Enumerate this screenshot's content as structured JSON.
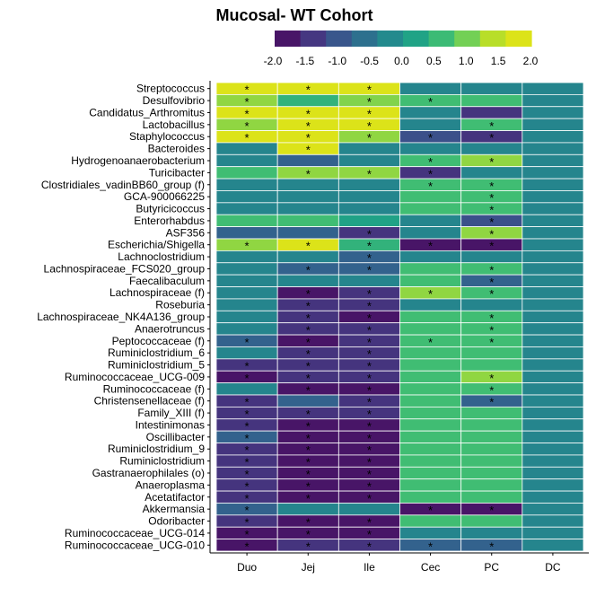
{
  "chart_data": {
    "type": "heatmap",
    "title": "Mucosal- WT Cohort",
    "columns": [
      "Duo",
      "Jej",
      "Ile",
      "Cec",
      "PC",
      "DC"
    ],
    "legend": {
      "ticks": [
        "-2.0",
        "-1.5",
        "-1.0",
        "-0.5",
        "0.0",
        "0.5",
        "1.0",
        "1.5",
        "2.0"
      ],
      "range": [
        -2.0,
        2.0
      ],
      "colors": [
        "#481567",
        "#453781",
        "#39568c",
        "#2d708e",
        "#238a8d",
        "#20a386",
        "#3cbb75",
        "#73d055",
        "#b8de29",
        "#dce319"
      ]
    },
    "significance_marker": "*",
    "rows": [
      {
        "label": "Streptococcus",
        "values": [
          2.0,
          2.0,
          2.0,
          -0.3,
          -0.3,
          -0.3
        ],
        "sig": [
          1,
          1,
          1,
          0,
          0,
          0
        ]
      },
      {
        "label": "Desulfovibrio",
        "values": [
          1.3,
          0.5,
          1.2,
          0.7,
          0.7,
          -0.3
        ],
        "sig": [
          1,
          0,
          1,
          1,
          0,
          0
        ]
      },
      {
        "label": "Candidatus_Arthromitus",
        "values": [
          2.0,
          2.0,
          2.0,
          -0.3,
          -1.6,
          -0.3
        ],
        "sig": [
          1,
          1,
          1,
          0,
          0,
          0
        ]
      },
      {
        "label": "Lactobacillus",
        "values": [
          1.3,
          2.0,
          2.0,
          -0.3,
          0.7,
          -0.3
        ],
        "sig": [
          1,
          1,
          1,
          0,
          1,
          0
        ]
      },
      {
        "label": "Staphylococcus",
        "values": [
          2.0,
          2.0,
          1.3,
          -1.2,
          -1.6,
          -0.3
        ],
        "sig": [
          1,
          1,
          1,
          1,
          1,
          0
        ]
      },
      {
        "label": "Bacteroides",
        "values": [
          -0.3,
          2.0,
          -0.3,
          -0.3,
          -0.3,
          -0.3
        ],
        "sig": [
          0,
          1,
          0,
          0,
          0,
          0
        ]
      },
      {
        "label": "Hydrogenoanaerobacterium",
        "values": [
          -0.3,
          -0.9,
          -0.3,
          0.7,
          1.3,
          -0.3
        ],
        "sig": [
          0,
          0,
          0,
          1,
          1,
          0
        ]
      },
      {
        "label": "Turicibacter",
        "values": [
          0.7,
          1.3,
          1.3,
          -1.6,
          -0.3,
          -0.3
        ],
        "sig": [
          0,
          1,
          1,
          1,
          0,
          0
        ]
      },
      {
        "label": "Clostridiales_vadinBB60_group (f)",
        "values": [
          -0.3,
          -0.3,
          -0.3,
          0.7,
          0.7,
          -0.3
        ],
        "sig": [
          0,
          0,
          0,
          1,
          1,
          0
        ]
      },
      {
        "label": "GCA-900066225",
        "values": [
          -0.3,
          -0.3,
          -0.3,
          0.7,
          0.7,
          -0.3
        ],
        "sig": [
          0,
          0,
          0,
          0,
          1,
          0
        ]
      },
      {
        "label": "Butyricicoccus",
        "values": [
          -0.3,
          -0.3,
          -0.3,
          0.7,
          0.7,
          -0.3
        ],
        "sig": [
          0,
          0,
          0,
          0,
          1,
          0
        ]
      },
      {
        "label": "Enterorhabdus",
        "values": [
          0.7,
          0.7,
          0.2,
          -0.3,
          -1.2,
          -0.3
        ],
        "sig": [
          0,
          0,
          0,
          0,
          1,
          0
        ]
      },
      {
        "label": "ASF356",
        "values": [
          -0.9,
          -0.9,
          -1.6,
          -0.3,
          1.3,
          -0.3
        ],
        "sig": [
          0,
          0,
          1,
          0,
          1,
          0
        ]
      },
      {
        "label": "Escherichia/Shigella",
        "values": [
          1.3,
          2.0,
          0.5,
          -2.0,
          -2.0,
          -0.3
        ],
        "sig": [
          1,
          1,
          1,
          1,
          1,
          0
        ]
      },
      {
        "label": "Lachnoclostridium",
        "values": [
          -0.3,
          -0.3,
          -0.9,
          -0.3,
          -0.3,
          -0.3
        ],
        "sig": [
          0,
          0,
          1,
          0,
          0,
          0
        ]
      },
      {
        "label": "Lachnospiraceae_FCS020_group",
        "values": [
          -0.3,
          -0.9,
          -0.9,
          0.7,
          0.7,
          -0.3
        ],
        "sig": [
          0,
          1,
          1,
          0,
          1,
          0
        ]
      },
      {
        "label": "Faecalibaculum",
        "values": [
          -0.3,
          -0.3,
          -0.3,
          0.7,
          -0.9,
          -0.3
        ],
        "sig": [
          0,
          0,
          0,
          0,
          1,
          0
        ]
      },
      {
        "label": "Lachnospiraceae (f)",
        "values": [
          -0.3,
          -2.0,
          -1.6,
          1.3,
          0.7,
          -0.3
        ],
        "sig": [
          0,
          1,
          1,
          1,
          1,
          0
        ]
      },
      {
        "label": "Roseburia",
        "values": [
          -0.3,
          -1.6,
          -1.6,
          -0.3,
          -0.3,
          -0.3
        ],
        "sig": [
          0,
          1,
          1,
          0,
          0,
          0
        ]
      },
      {
        "label": "Lachnospiraceae_NK4A136_group",
        "values": [
          -0.3,
          -1.6,
          -2.0,
          0.7,
          0.7,
          -0.3
        ],
        "sig": [
          0,
          1,
          1,
          0,
          1,
          0
        ]
      },
      {
        "label": "Anaerotruncus",
        "values": [
          -0.3,
          -1.6,
          -1.6,
          0.7,
          0.7,
          -0.3
        ],
        "sig": [
          0,
          1,
          1,
          0,
          1,
          0
        ]
      },
      {
        "label": "Peptococcaceae (f)",
        "values": [
          -0.9,
          -2.0,
          -1.6,
          0.7,
          0.7,
          -0.3
        ],
        "sig": [
          1,
          1,
          1,
          1,
          1,
          0
        ]
      },
      {
        "label": "Ruminiclostridium_6",
        "values": [
          -0.3,
          -1.6,
          -1.6,
          0.7,
          0.7,
          -0.3
        ],
        "sig": [
          0,
          1,
          1,
          0,
          0,
          0
        ]
      },
      {
        "label": "Ruminiclostridium_5",
        "values": [
          -1.6,
          -1.6,
          -1.6,
          0.7,
          0.7,
          -0.3
        ],
        "sig": [
          1,
          1,
          1,
          0,
          0,
          0
        ]
      },
      {
        "label": "Ruminococcaceae_UCG-009",
        "values": [
          -2.0,
          -1.6,
          -1.6,
          0.7,
          1.3,
          -0.3
        ],
        "sig": [
          1,
          1,
          1,
          0,
          1,
          0
        ]
      },
      {
        "label": "Ruminococcaceae (f)",
        "values": [
          -0.3,
          -2.0,
          -2.0,
          0.7,
          0.7,
          -0.3
        ],
        "sig": [
          0,
          1,
          1,
          0,
          1,
          0
        ]
      },
      {
        "label": "Christensenellaceae (f)",
        "values": [
          -1.6,
          -0.9,
          -1.6,
          0.7,
          -0.9,
          -0.3
        ],
        "sig": [
          1,
          0,
          1,
          0,
          1,
          0
        ]
      },
      {
        "label": "Family_XIII (f)",
        "values": [
          -1.6,
          -1.6,
          -1.6,
          0.7,
          0.7,
          -0.3
        ],
        "sig": [
          1,
          1,
          1,
          0,
          0,
          0
        ]
      },
      {
        "label": "Intestinimonas",
        "values": [
          -1.6,
          -2.0,
          -2.0,
          0.7,
          0.7,
          -0.3
        ],
        "sig": [
          1,
          1,
          1,
          0,
          0,
          0
        ]
      },
      {
        "label": "Oscillibacter",
        "values": [
          -0.9,
          -2.0,
          -2.0,
          0.7,
          0.7,
          -0.3
        ],
        "sig": [
          1,
          1,
          1,
          0,
          0,
          0
        ]
      },
      {
        "label": "Ruminiclostridium_9",
        "values": [
          -1.6,
          -2.0,
          -2.0,
          0.7,
          0.7,
          -0.3
        ],
        "sig": [
          1,
          1,
          1,
          0,
          0,
          0
        ]
      },
      {
        "label": "Ruminiclostridium",
        "values": [
          -1.6,
          -2.0,
          -2.0,
          0.7,
          0.7,
          -0.3
        ],
        "sig": [
          1,
          1,
          1,
          0,
          0,
          0
        ]
      },
      {
        "label": "Gastranaerophilales (o)",
        "values": [
          -1.6,
          -2.0,
          -2.0,
          0.7,
          0.7,
          -0.3
        ],
        "sig": [
          1,
          1,
          1,
          0,
          0,
          0
        ]
      },
      {
        "label": "Anaeroplasma",
        "values": [
          -1.6,
          -2.0,
          -2.0,
          0.7,
          0.7,
          -0.3
        ],
        "sig": [
          1,
          1,
          1,
          0,
          0,
          0
        ]
      },
      {
        "label": "Acetatifactor",
        "values": [
          -1.6,
          -2.0,
          -2.0,
          0.7,
          0.7,
          -0.3
        ],
        "sig": [
          1,
          1,
          1,
          0,
          0,
          0
        ]
      },
      {
        "label": "Akkermansia",
        "values": [
          -0.9,
          -0.3,
          -0.3,
          -2.0,
          -2.0,
          -0.3
        ],
        "sig": [
          1,
          0,
          0,
          1,
          1,
          0
        ]
      },
      {
        "label": "Odoribacter",
        "values": [
          -1.6,
          -2.0,
          -2.0,
          0.7,
          0.7,
          -0.3
        ],
        "sig": [
          1,
          1,
          1,
          0,
          0,
          0
        ]
      },
      {
        "label": "Ruminococcaceae_UCG-014",
        "values": [
          -2.0,
          -2.0,
          -2.0,
          -0.3,
          -0.3,
          -0.3
        ],
        "sig": [
          1,
          1,
          1,
          0,
          0,
          0
        ]
      },
      {
        "label": "Ruminococcaceae_UCG-010",
        "values": [
          -2.0,
          -1.6,
          -1.6,
          -0.9,
          -0.9,
          -0.3
        ],
        "sig": [
          1,
          1,
          1,
          1,
          1,
          0
        ]
      }
    ]
  }
}
